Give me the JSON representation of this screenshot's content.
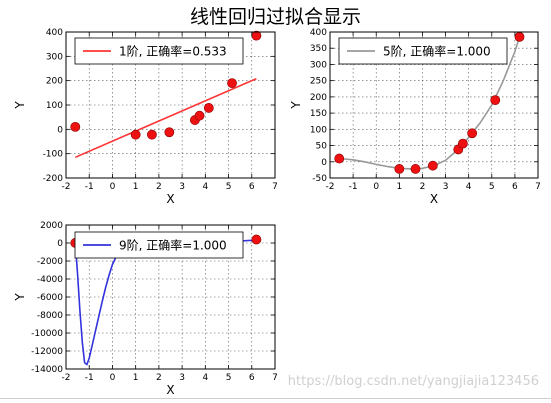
{
  "figure_title": "线性回归过拟合显示",
  "watermark": "https://blog.csdn.net/yangjiajia123456",
  "chart_data": [
    {
      "type": "scatter",
      "title": "",
      "xlabel": "X",
      "ylabel": "Y",
      "xlim": [
        -2,
        7
      ],
      "ylim": [
        -200,
        400
      ],
      "xticks": [
        -2,
        -1,
        0,
        1,
        2,
        3,
        4,
        5,
        6,
        7
      ],
      "yticks": [
        -200,
        -100,
        0,
        100,
        200,
        300,
        400
      ],
      "grid": true,
      "legend_placement": "top-left",
      "points": {
        "x": [
          -1.6,
          1.0,
          1.7,
          2.45,
          3.55,
          3.75,
          4.15,
          5.15,
          6.2
        ],
        "y": [
          10,
          -22,
          -22,
          -12,
          38,
          56,
          88,
          190,
          385
        ]
      },
      "fit": {
        "name": "1阶, 正确率=0.533",
        "color": "#ff3333",
        "x": [
          -1.6,
          6.2
        ],
        "y": [
          -115,
          208
        ]
      }
    },
    {
      "type": "scatter",
      "title": "",
      "xlabel": "X",
      "ylabel": "Y",
      "xlim": [
        -2,
        7
      ],
      "ylim": [
        -50,
        400
      ],
      "xticks": [
        -2,
        -1,
        0,
        1,
        2,
        3,
        4,
        5,
        6,
        7
      ],
      "yticks": [
        -50,
        0,
        50,
        100,
        150,
        200,
        250,
        300,
        350,
        400
      ],
      "grid": true,
      "legend_placement": "top-left",
      "points": {
        "x": [
          -1.6,
          1.0,
          1.7,
          2.45,
          3.55,
          3.75,
          4.15,
          5.15,
          6.2
        ],
        "y": [
          10,
          -22,
          -22,
          -12,
          38,
          56,
          88,
          190,
          385
        ]
      },
      "fit": {
        "name": "5阶, 正确率=1.000",
        "color": "#999999",
        "x": [
          -1.6,
          -1.0,
          -0.5,
          0.0,
          0.5,
          1.0,
          1.5,
          2.0,
          2.5,
          3.0,
          3.5,
          4.0,
          4.5,
          5.0,
          5.5,
          6.0,
          6.2
        ],
        "y": [
          10,
          6,
          0,
          -8,
          -15,
          -20,
          -22,
          -20,
          -12,
          5,
          35,
          75,
          120,
          175,
          250,
          340,
          385
        ]
      }
    },
    {
      "type": "scatter",
      "title": "",
      "xlabel": "X",
      "ylabel": "Y",
      "xlim": [
        -2,
        7
      ],
      "ylim": [
        -14000,
        2000
      ],
      "xticks": [
        -2,
        -1,
        0,
        1,
        2,
        3,
        4,
        5,
        6,
        7
      ],
      "yticks": [
        -14000,
        -12000,
        -10000,
        -8000,
        -6000,
        -4000,
        -2000,
        0,
        2000
      ],
      "grid": true,
      "legend_placement": "top-left",
      "points": {
        "x": [
          -1.6,
          1.0,
          1.7,
          2.45,
          3.55,
          3.75,
          4.15,
          5.15,
          6.2
        ],
        "y": [
          10,
          -22,
          -22,
          -12,
          38,
          56,
          88,
          190,
          385
        ]
      },
      "fit": {
        "name": "9阶, 正确率=1.000",
        "color": "#3333dd",
        "x": [
          -1.6,
          -1.5,
          -1.4,
          -1.3,
          -1.2,
          -1.1,
          -1.0,
          -0.9,
          -0.75,
          -0.6,
          -0.45,
          -0.3,
          -0.15,
          0.0,
          0.2,
          0.5,
          1.0,
          2.0,
          3.0,
          4.0,
          5.0,
          5.5,
          6.0,
          6.2
        ],
        "y": [
          10,
          -3500,
          -7500,
          -11000,
          -13300,
          -13500,
          -12800,
          -11700,
          -10000,
          -8300,
          -6600,
          -5000,
          -3600,
          -2400,
          -1300,
          -500,
          -22,
          0,
          0,
          80,
          180,
          220,
          300,
          385
        ]
      }
    }
  ]
}
